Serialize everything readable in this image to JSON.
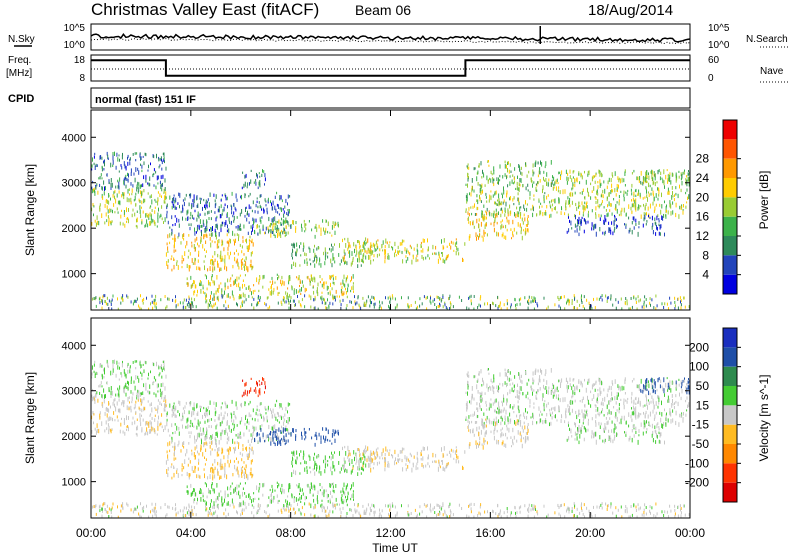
{
  "header": {
    "site": "Christmas Valley East (fitACF)",
    "beam": "Beam 06",
    "date": "18/Aug/2014"
  },
  "noise_panel": {
    "left_label": "N.Sky",
    "left_ticks": [
      "10^5",
      "10^0"
    ],
    "right_label": "N.Search",
    "right_ticks": [
      "10^5",
      "10^0"
    ]
  },
  "freq_panel": {
    "left_label_1": "Freq.",
    "left_label_2": "[MHz]",
    "left_ticks": [
      "18",
      "8"
    ],
    "right_label": "Nave",
    "right_ticks": [
      "60",
      "0"
    ]
  },
  "cpid_panel": {
    "label": "CPID",
    "text": "normal (fast) 151 IF"
  },
  "time_axis": {
    "ticks": [
      "00:00",
      "04:00",
      "08:00",
      "12:00",
      "16:00",
      "20:00",
      "00:00"
    ],
    "title": "Time UT"
  },
  "range_axis": {
    "title": "Slant Range [km]",
    "ticks": [
      "1000",
      "2000",
      "3000",
      "4000"
    ]
  },
  "power_colorbar": {
    "title": "Power [dB]",
    "ticks": [
      "4",
      "8",
      "12",
      "16",
      "20",
      "24",
      "28"
    ],
    "colors": [
      "#0000e0",
      "#2244bb",
      "#2e8a5a",
      "#3cb24a",
      "#99cc33",
      "#ffcc00",
      "#ff9900",
      "#ff5500",
      "#ee0000"
    ]
  },
  "velocity_colorbar": {
    "title": "Velocity [m s^-1]",
    "ticks": [
      "200",
      "100",
      "50",
      "15",
      "-15",
      "-50",
      "-100",
      "-200"
    ],
    "colors": [
      "#1a2fbf",
      "#1f4fa8",
      "#2e8b4e",
      "#44cc33",
      "#c8c8c8",
      "#ffbb22",
      "#ff8800",
      "#ff3300",
      "#dd0000"
    ]
  },
  "chart_data": {
    "type": "heatmap",
    "x_unit": "hours UT",
    "xlim": [
      0,
      24
    ],
    "ylim": [
      200,
      4600
    ],
    "scatter_regions": [
      {
        "t0": 0.0,
        "t1": 3.0,
        "r0": 2050,
        "r1": 2900,
        "power": 18,
        "velocity": -5
      },
      {
        "t0": 0.0,
        "t1": 3.0,
        "r0": 2900,
        "r1": 3700,
        "power": 8,
        "velocity": 20
      },
      {
        "t0": 3.0,
        "t1": 6.5,
        "r0": 1100,
        "r1": 1900,
        "power": 22,
        "velocity": -20
      },
      {
        "t0": 3.0,
        "t1": 8.0,
        "r0": 1900,
        "r1": 2800,
        "power": 8,
        "velocity": 10
      },
      {
        "t0": 3.8,
        "t1": 10.5,
        "r0": 500,
        "r1": 1000,
        "power": 20,
        "velocity": 25
      },
      {
        "t0": 6.5,
        "t1": 10.0,
        "r0": 1850,
        "r1": 2200,
        "power": 18,
        "velocity": 120
      },
      {
        "t0": 8.0,
        "t1": 11.0,
        "r0": 1200,
        "r1": 1700,
        "power": 14,
        "velocity": 30
      },
      {
        "t0": 10.0,
        "t1": 15.0,
        "r0": 1300,
        "r1": 1800,
        "power": 20,
        "velocity": -5
      },
      {
        "t0": 6.0,
        "t1": 7.0,
        "r0": 2900,
        "r1": 3300,
        "power": 8,
        "velocity": -200
      },
      {
        "t0": 15.0,
        "t1": 17.5,
        "r0": 1800,
        "r1": 2400,
        "power": 22,
        "velocity": -5
      },
      {
        "t0": 15.0,
        "t1": 18.5,
        "r0": 2300,
        "r1": 3500,
        "power": 16,
        "velocity": 5
      },
      {
        "t0": 18.5,
        "t1": 24.0,
        "r0": 2300,
        "r1": 3300,
        "power": 18,
        "velocity": 5
      },
      {
        "t0": 19.0,
        "t1": 23.0,
        "r0": 1900,
        "r1": 2300,
        "power": 6,
        "velocity": 15
      },
      {
        "t0": 22.0,
        "t1": 24.0,
        "r0": 3000,
        "r1": 3300,
        "power": 14,
        "velocity": 150
      }
    ],
    "frequency_mhz": [
      {
        "t0": 0.0,
        "t1": 3.0,
        "value": 16
      },
      {
        "t0": 3.0,
        "t1": 15.0,
        "value": 10
      },
      {
        "t0": 15.0,
        "t1": 24.0,
        "value": 16
      }
    ]
  }
}
